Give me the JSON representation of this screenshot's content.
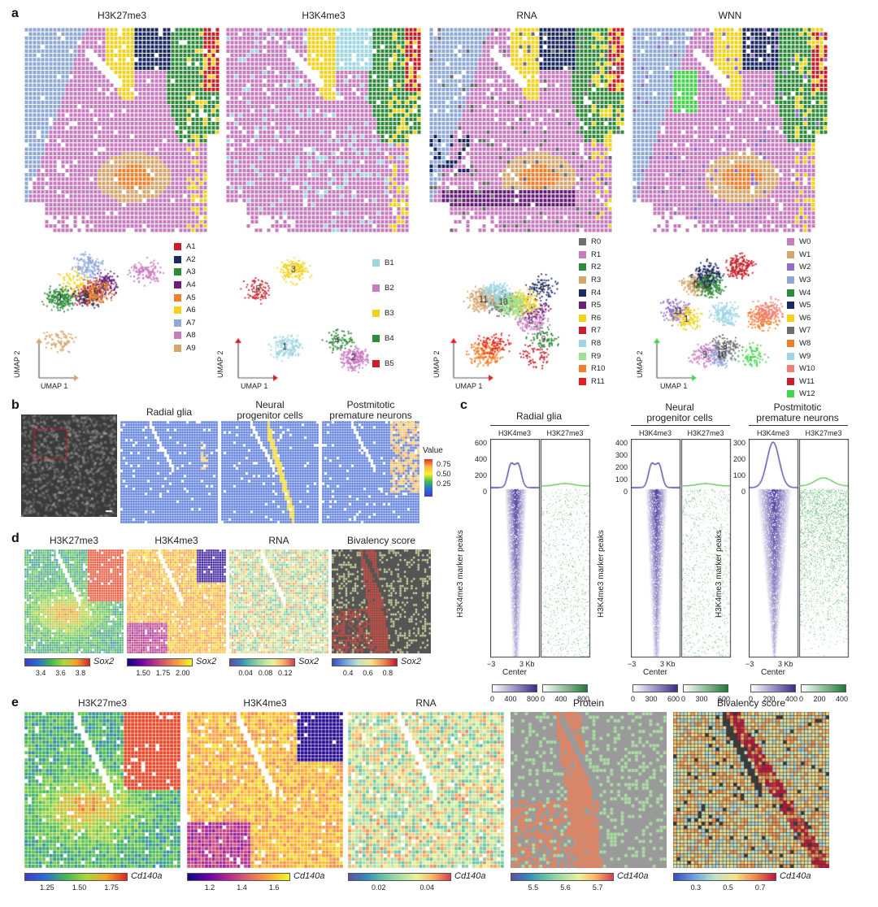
{
  "panels": {
    "a": {
      "letter": "a",
      "maps": [
        {
          "title": "H3K27me3",
          "seed": 11
        },
        {
          "title": "H3K4me3",
          "seed": 23
        },
        {
          "title": "RNA",
          "seed": 37
        },
        {
          "title": "WNN",
          "seed": 51
        }
      ],
      "umap_axes": {
        "x": "UMAP 1",
        "y": "UMAP 2"
      },
      "legends": [
        {
          "items": [
            {
              "label": "A1",
              "color": "#c8202a"
            },
            {
              "label": "A2",
              "color": "#1b2a63"
            },
            {
              "label": "A3",
              "color": "#2e8b3a"
            },
            {
              "label": "A4",
              "color": "#6b1f7a"
            },
            {
              "label": "A5",
              "color": "#f07f2a"
            },
            {
              "label": "A6",
              "color": "#f2d21b"
            },
            {
              "label": "A7",
              "color": "#8fa9d6"
            },
            {
              "label": "A8",
              "color": "#c97bbf"
            },
            {
              "label": "A9",
              "color": "#d5a56b"
            }
          ]
        },
        {
          "items": [
            {
              "label": "B1",
              "color": "#9fd6e3"
            },
            {
              "label": "B2",
              "color": "#c97bbf"
            },
            {
              "label": "B3",
              "color": "#f2d21b"
            },
            {
              "label": "B4",
              "color": "#2e8b3a"
            },
            {
              "label": "B5",
              "color": "#c8202a"
            }
          ]
        },
        {
          "items": [
            {
              "label": "R0",
              "color": "#6e6e6e"
            },
            {
              "label": "R1",
              "color": "#c97bbf"
            },
            {
              "label": "R2",
              "color": "#2e8b3a"
            },
            {
              "label": "R3",
              "color": "#d5a56b"
            },
            {
              "label": "R4",
              "color": "#1b2a63"
            },
            {
              "label": "R5",
              "color": "#6b1f7a"
            },
            {
              "label": "R6",
              "color": "#f2d21b"
            },
            {
              "label": "R7",
              "color": "#c8202a"
            },
            {
              "label": "R8",
              "color": "#9fd6e3"
            },
            {
              "label": "R9",
              "color": "#9be38e"
            },
            {
              "label": "R10",
              "color": "#f07f2a"
            },
            {
              "label": "R11",
              "color": "#e0211f"
            }
          ]
        },
        {
          "items": [
            {
              "label": "W0",
              "color": "#c97bbf"
            },
            {
              "label": "W1",
              "color": "#d5a56b"
            },
            {
              "label": "W2",
              "color": "#8f6fc7"
            },
            {
              "label": "W3",
              "color": "#8fa9d6"
            },
            {
              "label": "W4",
              "color": "#2e8b3a"
            },
            {
              "label": "W5",
              "color": "#1b2a63"
            },
            {
              "label": "W6",
              "color": "#f2d21b"
            },
            {
              "label": "W7",
              "color": "#6e6e6e"
            },
            {
              "label": "W8",
              "color": "#f07f2a"
            },
            {
              "label": "W9",
              "color": "#9fd6e3"
            },
            {
              "label": "W10",
              "color": "#f07f7a"
            },
            {
              "label": "W11",
              "color": "#c8202a"
            },
            {
              "label": "W12",
              "color": "#44d44a"
            }
          ]
        }
      ],
      "umap_labels": [
        [
          "5",
          "8",
          "9",
          "7",
          "6"
        ],
        [
          "1",
          "2",
          "3",
          "4",
          "5"
        ],
        [
          "10",
          "3",
          "9",
          "11",
          "8"
        ],
        [
          "9",
          "0",
          "11",
          "10",
          "6",
          "12",
          "1",
          "8"
        ]
      ]
    },
    "b": {
      "letter": "b",
      "titles": [
        "Radial glia",
        "Neural\nprogenitor cells",
        "Postmitotic\npremature neurons"
      ],
      "value_label": "Value",
      "value_ticks": [
        "0.75",
        "0.50",
        "0.25"
      ]
    },
    "c": {
      "letter": "c",
      "groups": [
        {
          "title": "Radial glia",
          "ylim_ticks": [
            "600",
            "400",
            "200",
            "0"
          ],
          "cbar1": [
            "0",
            "400",
            "800"
          ],
          "cbar2": [
            "0",
            "400",
            "800"
          ]
        },
        {
          "title": "Neural\nprogenitor cells",
          "ylim_ticks": [
            "400",
            "300",
            "200",
            "100",
            "0"
          ],
          "cbar1": [
            "0",
            "300",
            "600"
          ],
          "cbar2": [
            "0",
            "300",
            "600"
          ]
        },
        {
          "title": "Postmitotic\npremature neurons",
          "ylim_ticks": [
            "300",
            "200",
            "100",
            "0"
          ],
          "cbar1": [
            "0",
            "200",
            "400"
          ],
          "cbar2": [
            "0",
            "200",
            "400"
          ]
        }
      ],
      "col_labels": [
        "H3K4me3",
        "H3K27me3"
      ],
      "ylabel": "H3K4me3 marker peaks",
      "x_left": "−3",
      "x_right": "3 Kb",
      "x_center": "Center"
    },
    "d": {
      "letter": "d",
      "maps": [
        {
          "title": "H3K27me3",
          "gene": "Sox2",
          "ticks": [
            "3.4",
            "3.6",
            "3.8"
          ]
        },
        {
          "title": "H3K4me3",
          "gene": "Sox2",
          "ticks": [
            "1.50",
            "1.75",
            "2.00"
          ]
        },
        {
          "title": "RNA",
          "gene": "Sox2",
          "ticks": [
            "0.04",
            "0.08",
            "0.12"
          ]
        },
        {
          "title": "Bivalency score",
          "gene": "Sox2",
          "ticks": [
            "0.4",
            "0.6",
            "0.8"
          ]
        }
      ]
    },
    "e": {
      "letter": "e",
      "maps": [
        {
          "title": "H3K27me3",
          "gene": "Cd140a",
          "ticks": [
            "1.25",
            "1.50",
            "1.75"
          ]
        },
        {
          "title": "H3K4me3",
          "gene": "Cd140a",
          "ticks": [
            "1.2",
            "1.4",
            "1.6"
          ]
        },
        {
          "title": "RNA",
          "gene": "Cd140a",
          "ticks": [
            "0.02",
            "0.04"
          ]
        },
        {
          "title": "Protein",
          "gene": "Cd140a",
          "ticks": [
            "5.5",
            "5.6",
            "5.7"
          ]
        },
        {
          "title": "Bivalency score",
          "gene": "Cd140a",
          "ticks": [
            "0.3",
            "0.5",
            "0.7"
          ]
        }
      ]
    }
  },
  "colors": {
    "pink": "#c97bbf",
    "tan": "#d5a56b",
    "green": "#2e8b3a",
    "navy": "#1b2a63",
    "yellow": "#f2d21b",
    "red": "#c8202a",
    "blue_value": "#4a6fd8",
    "purple_line": "#3c3a9a",
    "green_line": "#56c24f"
  }
}
